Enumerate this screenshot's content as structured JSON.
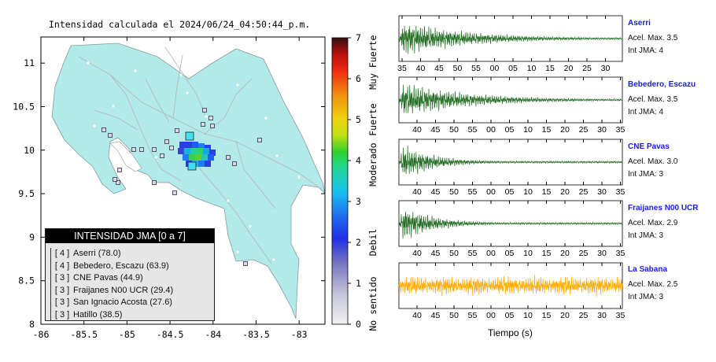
{
  "title": "Intensidad calculada el 2024/06/24_04:50:44_p.m.",
  "map": {
    "lon_ticks": [
      "-86",
      "-85.5",
      "-85",
      "-84.5",
      "-84",
      "-83.5",
      "-83"
    ],
    "lat_ticks": [
      "11",
      "10.5",
      "10",
      "9.5",
      "9",
      "8.5",
      "8"
    ],
    "xlim": [
      -86,
      -82.7
    ],
    "ylim": [
      8,
      11.3
    ]
  },
  "colorbar": {
    "ticks": [
      "0",
      "1",
      "2",
      "3",
      "4",
      "5",
      "6",
      "7"
    ],
    "labels": [
      {
        "text": "No sentido",
        "value": 0.5
      },
      {
        "text": "Debil",
        "value": 2
      },
      {
        "text": "Moderado",
        "value": 3.9
      },
      {
        "text": "Fuerte",
        "value": 5
      },
      {
        "text": "Muy Fuerte",
        "value": 6.4
      }
    ]
  },
  "legend": {
    "header": "INTENSIDAD JMA [0 a 7]",
    "rows": [
      {
        "level": "[ 4 ]",
        "text": "Aserri (78.0)"
      },
      {
        "level": "[ 4 ]",
        "text": "Bebedero, Escazu (63.9)"
      },
      {
        "level": "[ 3 ]",
        "text": "CNE Pavas (44.9)"
      },
      {
        "level": "[ 3 ]",
        "text": "Fraijanes N00 UCR (29.4)"
      },
      {
        "level": "[ 3 ]",
        "text": "San Ignacio Acosta (27.6)"
      },
      {
        "level": "[ 3 ]",
        "text": "Hatillo (38.5)"
      }
    ]
  },
  "chart_data": [
    {
      "type": "heatmap",
      "title": "Intensidad calculada el 2024/06/24_04:50:44_p.m.",
      "xlim": [
        -86,
        -82.7
      ],
      "ylim": [
        8,
        11.3
      ],
      "colorbar_range": [
        0,
        7
      ],
      "stations": [
        {
          "name": "Aserri",
          "intensity": 4
        },
        {
          "name": "Bebedero, Escazu",
          "intensity": 4
        },
        {
          "name": "CNE Pavas",
          "intensity": 3
        },
        {
          "name": "Fraijanes N00 UCR",
          "intensity": 3
        },
        {
          "name": "San Ignacio Acosta",
          "intensity": 3
        },
        {
          "name": "Hatillo",
          "intensity": 3
        }
      ]
    },
    {
      "type": "line",
      "xlabel": "Tiempo (s)",
      "series": [
        {
          "name": "Aserri",
          "accel_label": "Acel. Max. 3.5",
          "int_label": "Int JMA: 4",
          "color": "#1f6b1f",
          "ticks": [
            "35",
            "40",
            "45",
            "50",
            "55",
            "00",
            "05",
            "10",
            "15",
            "20",
            "25",
            "30"
          ]
        },
        {
          "name": "Bebedero, Escazu",
          "accel_label": "Acel. Max. 3.5",
          "int_label": "Int JMA: 4",
          "color": "#1f6b1f",
          "ticks": [
            "40",
            "45",
            "50",
            "55",
            "00",
            "05",
            "10",
            "15",
            "20",
            "25",
            "30",
            "35"
          ]
        },
        {
          "name": "CNE Pavas",
          "accel_label": "Acel. Max. 3.0",
          "int_label": "Int JMA: 3",
          "color": "#1f6b1f",
          "ticks": [
            "40",
            "45",
            "50",
            "55",
            "00",
            "05",
            "10",
            "15",
            "20",
            "25",
            "30",
            "35"
          ]
        },
        {
          "name": "Fraijanes N00 UCR",
          "accel_label": "Acel. Max. 2.9",
          "int_label": "Int JMA: 3",
          "color": "#1f6b1f",
          "ticks": [
            "40",
            "45",
            "50",
            "55",
            "00",
            "05",
            "10",
            "15",
            "20",
            "25",
            "30",
            "35"
          ]
        },
        {
          "name": "La Sabana",
          "accel_label": "Acel. Max. 2.5",
          "int_label": "Int JMA: 3",
          "color": "#ffaa00",
          "ticks": [
            "40",
            "45",
            "50",
            "55",
            "00",
            "05",
            "10",
            "15",
            "20",
            "25",
            "30",
            "35"
          ]
        }
      ]
    }
  ]
}
